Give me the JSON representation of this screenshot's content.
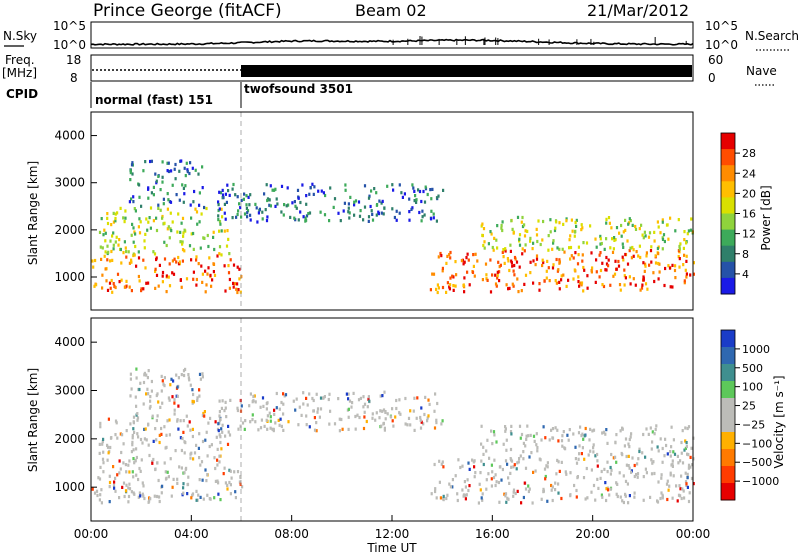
{
  "header": {
    "station": "Prince George (fitACF)",
    "beam": "Beam 02",
    "date": "21/Mar/2012"
  },
  "summary_panels": {
    "nsky_label": "N.Sky",
    "nsky_ticks": [
      "10^5",
      "10^0"
    ],
    "nsearch_label": "N.Search",
    "nsearch_ticks": [
      "10^5",
      "10^0"
    ],
    "freq_label_1": "Freq.",
    "freq_label_2": "[MHz]",
    "freq_ticks": [
      "18",
      "8"
    ],
    "nave_label": "Nave",
    "nave_ticks": [
      "60",
      "0"
    ],
    "cpid_label": "CPID",
    "cpid_segments": [
      {
        "label": "normal (fast) 151",
        "start_hour": 0,
        "end_hour": 6
      },
      {
        "label": "twofsound 3501",
        "start_hour": 6,
        "end_hour": 24
      }
    ]
  },
  "chart_data": [
    {
      "type": "heatmap",
      "panel": "power",
      "ylabel": "Slant Range [km]",
      "ylim": [
        300,
        4500
      ],
      "yticks": [
        "1000",
        "2000",
        "3000",
        "4000"
      ],
      "xlim_hours": [
        0,
        24
      ],
      "colorbar_label": "Power [dB]",
      "colorbar_ticks": [
        "28",
        "24",
        "20",
        "16",
        "12",
        "8",
        "4"
      ],
      "colors": [
        "#e60000",
        "#ff4d00",
        "#ff8c00",
        "#ffbe00",
        "#d9e000",
        "#8fd33c",
        "#3daa5a",
        "#2f7f6a",
        "#2552a8",
        "#1a1ae6"
      ],
      "regions_range_km": [
        {
          "from_hour": 0.0,
          "to_hour": 6.0,
          "from_km": 700,
          "to_km": 1500,
          "level": "high"
        },
        {
          "from_hour": 0.3,
          "to_hour": 5.5,
          "from_km": 1500,
          "to_km": 2500,
          "level": "medium"
        },
        {
          "from_hour": 1.5,
          "to_hour": 4.5,
          "from_km": 2500,
          "to_km": 3500,
          "level": "low"
        },
        {
          "from_hour": 13.5,
          "to_hour": 24.0,
          "from_km": 700,
          "to_km": 1600,
          "level": "high"
        },
        {
          "from_hour": 15.5,
          "to_hour": 24.0,
          "from_km": 1600,
          "to_km": 2300,
          "level": "medium"
        },
        {
          "from_hour": 5.0,
          "to_hour": 14.0,
          "from_km": 2200,
          "to_km": 3000,
          "level": "low"
        }
      ]
    },
    {
      "type": "heatmap",
      "panel": "velocity",
      "ylabel": "Slant Range [km]",
      "ylim": [
        300,
        4500
      ],
      "yticks": [
        "1000",
        "2000",
        "3000",
        "4000"
      ],
      "xlim_hours": [
        0,
        24
      ],
      "xticks": [
        "00:00",
        "04:00",
        "08:00",
        "12:00",
        "16:00",
        "20:00",
        "00:00"
      ],
      "xlabel": "Time UT",
      "colorbar_label": "Velocity [m s⁻¹]",
      "colorbar_ticks": [
        "1000",
        "500",
        "100",
        "25",
        "−25",
        "−100",
        "−500",
        "−1000"
      ],
      "colors": [
        "#1a3cc8",
        "#2f68b0",
        "#3f8f8f",
        "#5dc85a",
        "#bcbcb8",
        "#bcbcb8",
        "#ffb000",
        "#ff7a00",
        "#ff3c00",
        "#e60000"
      ],
      "ground_scatter_color": "#bcbcb8"
    }
  ]
}
